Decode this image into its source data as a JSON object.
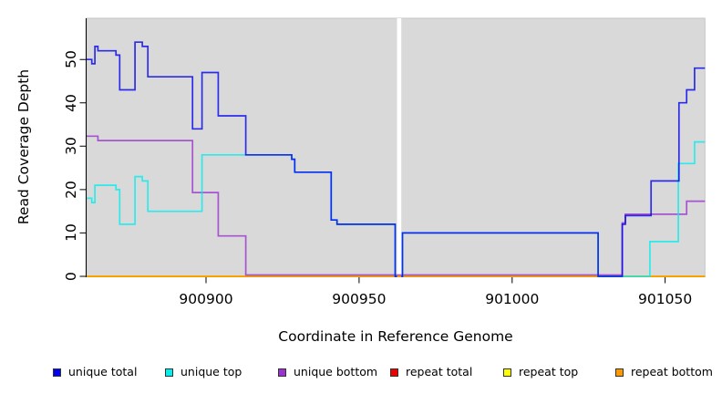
{
  "figure": {
    "background": "#ffffff"
  },
  "axes": {
    "x_title": "Coordinate in Reference Genome",
    "y_title": "Read Coverage Depth"
  },
  "legend": {
    "items": [
      {
        "label": "unique total",
        "color": "#0000EE"
      },
      {
        "label": "unique top",
        "color": "#00EEEE"
      },
      {
        "label": "unique bottom",
        "color": "#9A32CD"
      },
      {
        "label": "repeat total",
        "color": "#EE0000"
      },
      {
        "label": "repeat top",
        "color": "#FFFF00"
      },
      {
        "label": "repeat bottom",
        "color": "#FF9900"
      }
    ]
  },
  "chart_data": {
    "type": "line",
    "subtype": "step",
    "title": "",
    "xlabel": "Coordinate in Reference Genome",
    "ylabel": "Read Coverage Depth",
    "grid": false,
    "legend_position": "bottom",
    "plot_bg": "#d9d9d9",
    "xlim": [
      900861,
      901063
    ],
    "ylim": [
      0,
      59.5
    ],
    "x_ticks": [
      900900,
      900950,
      901000,
      901050
    ],
    "y_ticks": [
      0,
      10,
      20,
      30,
      40,
      50
    ],
    "na_gap": {
      "x_start": 900962.4,
      "x_end": 900963.8
    },
    "draw_order": [
      "repeat total",
      "repeat top",
      "repeat bottom",
      "unique bottom",
      "unique top",
      "unique total"
    ],
    "series": [
      {
        "name": "unique total",
        "color": "#0000EE",
        "steps": [
          [
            900861,
            50
          ],
          [
            900862.7,
            49
          ],
          [
            900863.7,
            53
          ],
          [
            900864.7,
            52
          ],
          [
            900870.6,
            51
          ],
          [
            900871.8,
            43
          ],
          [
            900876.8,
            54
          ],
          [
            900879.2,
            53
          ],
          [
            900881,
            46
          ],
          [
            900895.6,
            34
          ],
          [
            900898.7,
            47
          ],
          [
            900904,
            37
          ],
          [
            900913,
            28
          ],
          [
            900928,
            27
          ],
          [
            900929,
            24
          ],
          [
            900940.9,
            13
          ],
          [
            900942.8,
            12
          ],
          [
            900961.8,
            0
          ],
          [
            900962.4,
            null
          ],
          [
            900963.8,
            0
          ],
          [
            900964.2,
            10
          ],
          [
            901028.1,
            0
          ],
          [
            901036,
            12
          ],
          [
            901037,
            14
          ],
          [
            901045.4,
            22
          ],
          [
            901054.5,
            40
          ],
          [
            901057,
            43
          ],
          [
            901059.6,
            48
          ]
        ],
        "x_end": 901063
      },
      {
        "name": "unique top",
        "color": "#00EEEE",
        "steps": [
          [
            900861,
            18
          ],
          [
            900862.7,
            17
          ],
          [
            900863.7,
            21
          ],
          [
            900870.6,
            20
          ],
          [
            900871.8,
            12
          ],
          [
            900876.8,
            23
          ],
          [
            900879.2,
            22
          ],
          [
            900881,
            15
          ],
          [
            900898.7,
            28
          ],
          [
            900928,
            27
          ],
          [
            900929,
            24
          ],
          [
            900940.9,
            13
          ],
          [
            900942.8,
            12
          ],
          [
            900961.8,
            0
          ],
          [
            900962.4,
            null
          ],
          [
            900963.8,
            0
          ],
          [
            900964.2,
            10
          ],
          [
            901028.1,
            0
          ],
          [
            901045,
            8
          ],
          [
            901054.3,
            26
          ],
          [
            901059.6,
            31
          ]
        ],
        "x_end": 901063
      },
      {
        "name": "unique bottom",
        "color": "#9A32CD",
        "steps": [
          [
            900861,
            32
          ],
          [
            900864.7,
            31
          ],
          [
            900895.6,
            19
          ],
          [
            900904,
            9
          ],
          [
            900913,
            0
          ],
          [
            901036,
            12
          ],
          [
            901037,
            14
          ],
          [
            901057,
            17
          ]
        ],
        "x_end": 901063
      },
      {
        "name": "repeat total",
        "color": "#EE0000",
        "steps": [
          [
            900861,
            0
          ]
        ],
        "x_end": 901063
      },
      {
        "name": "repeat top",
        "color": "#FFFF00",
        "steps": [
          [
            900861,
            0
          ]
        ],
        "x_end": 901063
      },
      {
        "name": "repeat bottom",
        "color": "#FF9900",
        "steps": [
          [
            900861,
            0
          ]
        ],
        "x_end": 901063
      }
    ]
  }
}
